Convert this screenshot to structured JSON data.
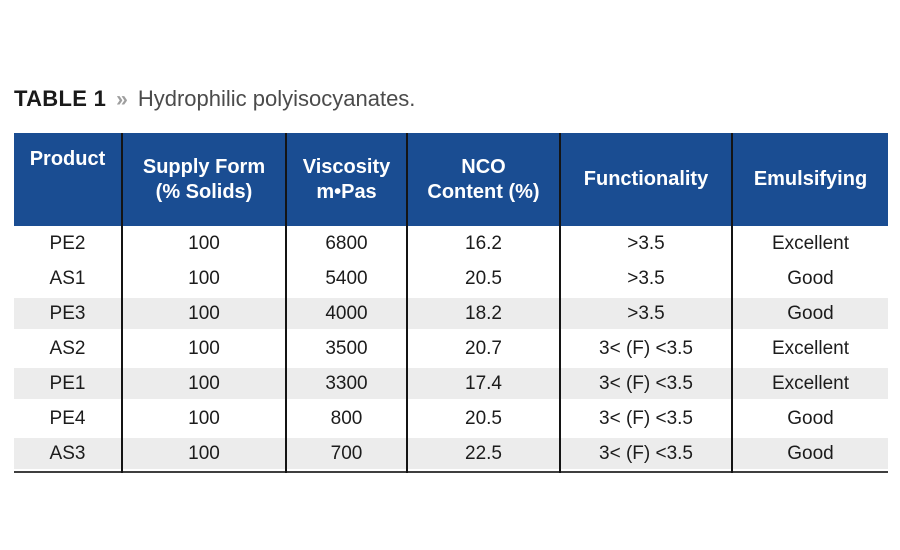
{
  "caption": {
    "label": "TABLE 1",
    "chevron": "»",
    "text": "Hydrophilic polyisocyanates."
  },
  "colors": {
    "header_bg": "#1A4D92",
    "header_text": "#FFFFFF",
    "row_stripe": "#ECECEC",
    "divider": "#141414",
    "body_text": "#1C1C1C",
    "caption_label": "#1A1A1A",
    "caption_chevron": "#9E9E9E",
    "caption_text": "#4B4B4B",
    "table_bottom_border": "#3F3F3F"
  },
  "table": {
    "columns": [
      {
        "id": "product",
        "label": "Product"
      },
      {
        "id": "supply_form",
        "label": "Supply Form\n(% Solids)"
      },
      {
        "id": "viscosity",
        "label": "Viscosity\nm•Pas"
      },
      {
        "id": "nco_content",
        "label": "NCO\nContent (%)"
      },
      {
        "id": "functionality",
        "label": "Functionality"
      },
      {
        "id": "emulsifying",
        "label": "Emulsifying"
      }
    ],
    "rows": [
      {
        "product": "PE2",
        "supply_form": "100",
        "viscosity": "6800",
        "nco_content": "16.2",
        "functionality": ">3.5",
        "emulsifying": "Excellent"
      },
      {
        "product": "AS1",
        "supply_form": "100",
        "viscosity": "5400",
        "nco_content": "20.5",
        "functionality": ">3.5",
        "emulsifying": "Good"
      },
      {
        "product": "PE3",
        "supply_form": "100",
        "viscosity": "4000",
        "nco_content": "18.2",
        "functionality": ">3.5",
        "emulsifying": "Good"
      },
      {
        "product": "AS2",
        "supply_form": "100",
        "viscosity": "3500",
        "nco_content": "20.7",
        "functionality": "3< (F) <3.5",
        "emulsifying": "Excellent"
      },
      {
        "product": "PE1",
        "supply_form": "100",
        "viscosity": "3300",
        "nco_content": "17.4",
        "functionality": "3< (F) <3.5",
        "emulsifying": "Excellent"
      },
      {
        "product": "PE4",
        "supply_form": "100",
        "viscosity": "800",
        "nco_content": "20.5",
        "functionality": "3< (F) <3.5",
        "emulsifying": "Good"
      },
      {
        "product": "AS3",
        "supply_form": "100",
        "viscosity": "700",
        "nco_content": "22.5",
        "functionality": "3< (F) <3.5",
        "emulsifying": "Good"
      }
    ]
  },
  "chart_data": {
    "type": "table",
    "title": "TABLE 1 » Hydrophilic polyisocyanates.",
    "columns": [
      "Product",
      "Supply Form (% Solids)",
      "Viscosity m•Pas",
      "NCO Content (%)",
      "Functionality",
      "Emulsifying"
    ],
    "rows": [
      [
        "PE2",
        100,
        6800,
        16.2,
        ">3.5",
        "Excellent"
      ],
      [
        "AS1",
        100,
        5400,
        20.5,
        ">3.5",
        "Good"
      ],
      [
        "PE3",
        100,
        4000,
        18.2,
        ">3.5",
        "Good"
      ],
      [
        "AS2",
        100,
        3500,
        20.7,
        "3< (F) <3.5",
        "Excellent"
      ],
      [
        "PE1",
        100,
        3300,
        17.4,
        "3< (F) <3.5",
        "Excellent"
      ],
      [
        "PE4",
        100,
        800,
        20.5,
        "3< (F) <3.5",
        "Good"
      ],
      [
        "AS3",
        100,
        700,
        22.5,
        "3< (F) <3.5",
        "Good"
      ]
    ]
  }
}
